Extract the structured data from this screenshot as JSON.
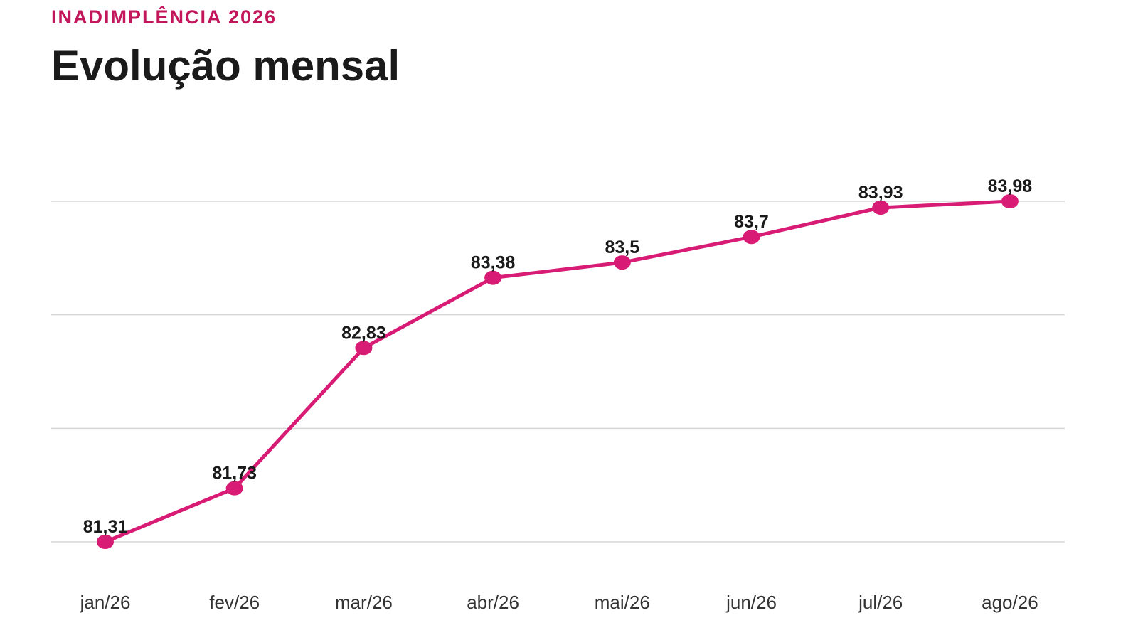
{
  "header": {
    "kicker": "INADIMPLÊNCIA 2026",
    "title": "Evolução mensal"
  },
  "colors": {
    "accent": "#d81b74",
    "kicker": "#c2185b",
    "grid": "#d6d6d6"
  },
  "chart_data": {
    "type": "line",
    "title": "Evolução mensal",
    "xlabel": "",
    "ylabel": "",
    "categories": [
      "jan/26",
      "fev/26",
      "mar/26",
      "abr/26",
      "mai/26",
      "jun/26",
      "jul/26",
      "ago/26"
    ],
    "series": [
      {
        "values": [
          81.31,
          81.73,
          82.83,
          83.38,
          83.5,
          83.7,
          83.93,
          83.98
        ],
        "labels": [
          "81,31",
          "81,73",
          "82,83",
          "83,38",
          "83,5",
          "83,7",
          "83,93",
          "83,98"
        ]
      }
    ],
    "ylim": [
      81.31,
      83.98
    ],
    "grid": true,
    "gridlines": 4,
    "legend": "none"
  }
}
